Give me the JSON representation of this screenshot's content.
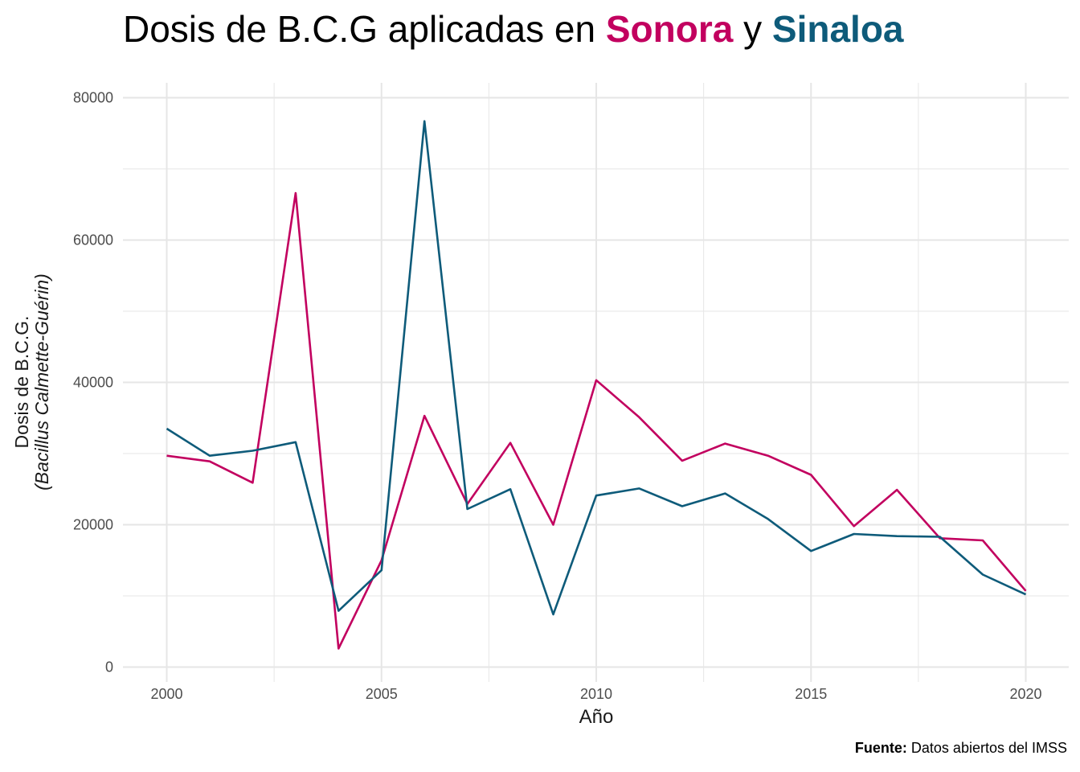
{
  "title": {
    "prefix": "Dosis de B.C.G aplicadas en ",
    "series_a": "Sonora",
    "middle": " y ",
    "series_b": "Sinaloa"
  },
  "caption": {
    "label": "Fuente:",
    "text": " Datos abiertos del IMSS"
  },
  "colors": {
    "Sonora": "#C2005F",
    "Sinaloa": "#0E5B7A",
    "grid": "#e6e6e6"
  },
  "chart_data": {
    "type": "line",
    "xlabel": "Año",
    "ylabel_line1": "Dosis de B.C.G.",
    "ylabel_line2": "(Bacillus Calmette-Guérin)",
    "xlim": [
      1999.1,
      2020.9
    ],
    "ylim": [
      0,
      80000
    ],
    "x_ticks": [
      2000,
      2005,
      2010,
      2015,
      2020
    ],
    "y_ticks": [
      0,
      20000,
      40000,
      60000,
      80000
    ],
    "grid": true,
    "legend": "none",
    "x": [
      2000,
      2001,
      2002,
      2003,
      2004,
      2005,
      2006,
      2007,
      2008,
      2009,
      2010,
      2011,
      2012,
      2013,
      2014,
      2015,
      2016,
      2017,
      2018,
      2019,
      2020
    ],
    "series": [
      {
        "name": "Sonora",
        "color": "#C2005F",
        "values": [
          29700,
          28900,
          25900,
          66600,
          2600,
          15000,
          35300,
          22900,
          31500,
          20000,
          40300,
          35100,
          29000,
          31400,
          29700,
          27000,
          19800,
          24900,
          18100,
          17800,
          10700
        ]
      },
      {
        "name": "Sinaloa",
        "color": "#0E5B7A",
        "values": [
          33500,
          29700,
          30400,
          31600,
          7900,
          13600,
          76700,
          22200,
          25000,
          7400,
          24100,
          25100,
          22600,
          24400,
          20800,
          16300,
          18700,
          18400,
          18300,
          13000,
          10200
        ]
      }
    ]
  }
}
